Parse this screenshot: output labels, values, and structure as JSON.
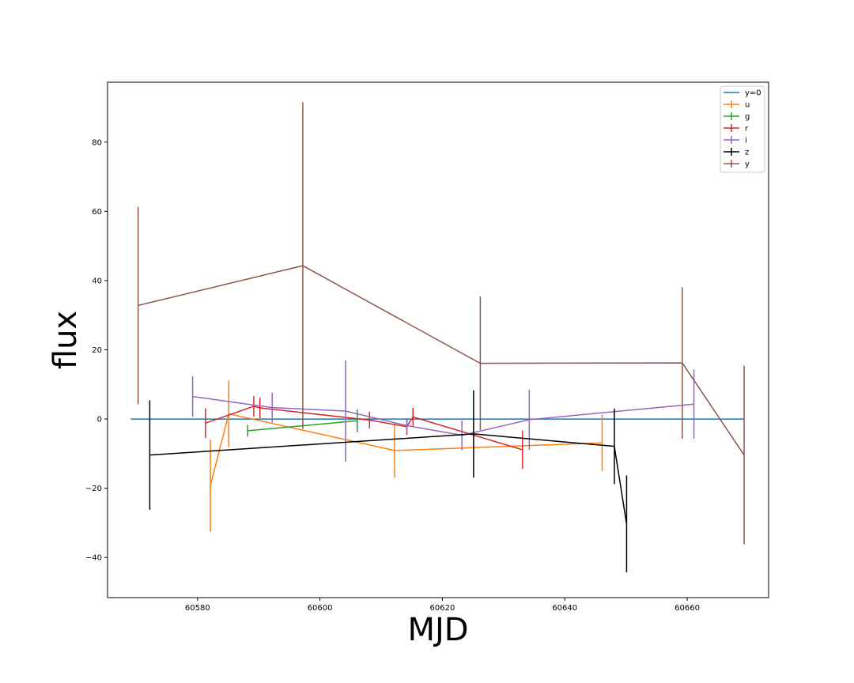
{
  "chart_data": {
    "type": "line",
    "title": "",
    "xlabel": "MJD",
    "ylabel": "flux",
    "xlim": [
      60565.3,
      60673.3
    ],
    "ylim": [
      -51.6,
      97.3
    ],
    "xticks": [
      60580,
      60600,
      60620,
      60640,
      60660
    ],
    "xtick_labels": [
      "60580",
      "60600",
      "60620",
      "60640",
      "60660"
    ],
    "yticks": [
      -40,
      -20,
      0,
      20,
      40,
      60,
      80
    ],
    "ytick_labels": [
      "−40",
      "−20",
      "0",
      "20",
      "40",
      "60",
      "80"
    ],
    "grid": false,
    "legend": "top-right",
    "series": [
      {
        "name": "y=0",
        "color": "#1f77b4",
        "errorbars": false,
        "x": [
          60569.1,
          60669.3
        ],
        "y": [
          0,
          0
        ]
      },
      {
        "name": "u",
        "color": "#ff7f0e",
        "errorbars": true,
        "x": [
          60582.1,
          60585.1,
          60612.2,
          60646.1
        ],
        "y": [
          -19.3,
          1.5,
          -9.1,
          -6.9
        ],
        "err": [
          13.3,
          9.6,
          7.9,
          8.2
        ]
      },
      {
        "name": "g",
        "color": "#2ca02c",
        "errorbars": true,
        "x": [
          60588.2,
          60606.1
        ],
        "y": [
          -3.4,
          -0.5
        ],
        "err": [
          1.7,
          3.3
        ]
      },
      {
        "name": "r",
        "color": "#d62728",
        "errorbars": true,
        "x": [
          60581.3,
          60589.2,
          60590.2,
          60608.1,
          60614.2,
          60615.2,
          60633.1
        ],
        "y": [
          -1.2,
          3.7,
          3.2,
          -0.3,
          -2.2,
          0.6,
          -8.9
        ],
        "err": [
          4.3,
          3.0,
          3.0,
          2.4,
          2.4,
          2.6,
          5.5
        ]
      },
      {
        "name": "i",
        "color": "#9467bd",
        "errorbars": true,
        "x": [
          60579.2,
          60592.2,
          60604.2,
          60614.2,
          60623.2,
          60634.2,
          60661.1
        ],
        "y": [
          6.5,
          3.3,
          2.3,
          -1.9,
          -4.7,
          -0.2,
          4.3
        ],
        "err": [
          5.8,
          4.3,
          14.6,
          1.9,
          4.3,
          8.7,
          10.0
        ]
      },
      {
        "name": "z",
        "color": "#000000",
        "errorbars": true,
        "x": [
          60572.2,
          60625.1,
          60648.1,
          60650.1
        ],
        "y": [
          -10.4,
          -4.3,
          -7.9,
          -30.3
        ],
        "err": [
          15.8,
          12.6,
          10.9,
          14.0
        ]
      },
      {
        "name": "y",
        "color": "#8c564b",
        "errorbars": true,
        "x": [
          60570.3,
          60597.2,
          60626.2,
          60659.2,
          60669.3
        ],
        "y": [
          32.8,
          44.3,
          16.1,
          16.2,
          -10.4
        ],
        "err": [
          28.5,
          47.2,
          19.3,
          21.9,
          25.8
        ]
      }
    ]
  }
}
